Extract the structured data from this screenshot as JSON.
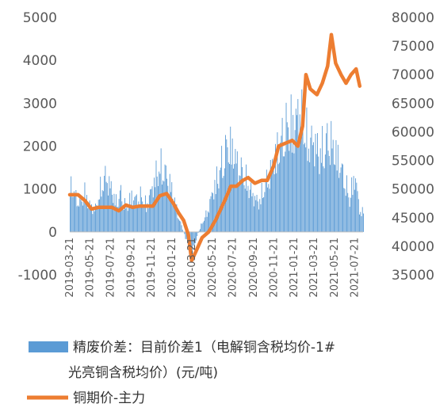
{
  "chart_data": {
    "type": "bar+line",
    "x_ticks": [
      "2019-03-21",
      "2019-05-21",
      "2019-07-21",
      "2019-09-21",
      "2019-11-21",
      "2020-01-21",
      "2020-03-21",
      "2020-05-21",
      "2020-07-21",
      "2020-09-21",
      "2020-11-21",
      "2021-01-21",
      "2021-03-21",
      "2021-05-21",
      "2021-07-21"
    ],
    "y_left": {
      "ticks": [
        "5000",
        "4000",
        "3000",
        "2000",
        "1000",
        "0",
        "-1000"
      ],
      "min": -1000,
      "max": 5000
    },
    "y_right": {
      "ticks": [
        "80000",
        "75000",
        "70000",
        "65000",
        "60000",
        "55000",
        "50000",
        "45000",
        "40000",
        "35000"
      ],
      "min": 35000,
      "max": 80000
    },
    "series": [
      {
        "name": "精废价差：目前价差1（电解铜含税均价-1#光亮铜含税均价）(元/吨)",
        "kind": "bar",
        "axis": "left",
        "color": "#5B9BD5",
        "points": [
          [
            "2019-03-21",
            1500
          ],
          [
            "2019-04-05",
            1100
          ],
          [
            "2019-04-20",
            900
          ],
          [
            "2019-05-05",
            1200
          ],
          [
            "2019-05-20",
            800
          ],
          [
            "2019-06-05",
            700
          ],
          [
            "2019-06-20",
            1300
          ],
          [
            "2019-07-05",
            1700
          ],
          [
            "2019-07-20",
            1400
          ],
          [
            "2019-08-05",
            900
          ],
          [
            "2019-08-20",
            1200
          ],
          [
            "2019-09-05",
            700
          ],
          [
            "2019-09-20",
            1100
          ],
          [
            "2019-10-05",
            1000
          ],
          [
            "2019-10-20",
            1100
          ],
          [
            "2019-11-05",
            800
          ],
          [
            "2019-11-20",
            1300
          ],
          [
            "2019-12-05",
            1800
          ],
          [
            "2019-12-20",
            2000
          ],
          [
            "2020-01-05",
            1700
          ],
          [
            "2020-01-20",
            1300
          ],
          [
            "2020-02-05",
            600
          ],
          [
            "2020-02-20",
            100
          ],
          [
            "2020-03-05",
            -300
          ],
          [
            "2020-03-20",
            -700
          ],
          [
            "2020-04-05",
            -100
          ],
          [
            "2020-04-20",
            300
          ],
          [
            "2020-05-05",
            600
          ],
          [
            "2020-05-20",
            1200
          ],
          [
            "2020-06-05",
            1700
          ],
          [
            "2020-06-20",
            2200
          ],
          [
            "2020-07-05",
            2700
          ],
          [
            "2020-07-20",
            2500
          ],
          [
            "2020-08-05",
            2000
          ],
          [
            "2020-08-20",
            1800
          ],
          [
            "2020-09-05",
            1400
          ],
          [
            "2020-09-20",
            1100
          ],
          [
            "2020-10-05",
            900
          ],
          [
            "2020-10-20",
            1300
          ],
          [
            "2020-11-05",
            1700
          ],
          [
            "2020-11-20",
            2200
          ],
          [
            "2020-12-05",
            2600
          ],
          [
            "2020-12-20",
            3000
          ],
          [
            "2021-01-05",
            3400
          ],
          [
            "2021-01-20",
            3200
          ],
          [
            "2021-02-05",
            3800
          ],
          [
            "2021-02-20",
            3100
          ],
          [
            "2021-03-05",
            2700
          ],
          [
            "2021-03-20",
            2800
          ],
          [
            "2021-04-05",
            2400
          ],
          [
            "2021-04-20",
            2600
          ],
          [
            "2021-05-05",
            2900
          ],
          [
            "2021-05-20",
            2500
          ],
          [
            "2021-06-05",
            2100
          ],
          [
            "2021-06-20",
            1600
          ],
          [
            "2021-07-05",
            1000
          ],
          [
            "2021-07-20",
            1800
          ],
          [
            "2021-08-05",
            600
          ]
        ]
      },
      {
        "name": "铜期价-主力",
        "kind": "line",
        "axis": "right",
        "color": "#ED7D31",
        "points": [
          [
            "2019-03-21",
            49000
          ],
          [
            "2019-04-15",
            49000
          ],
          [
            "2019-05-05",
            48000
          ],
          [
            "2019-05-25",
            46500
          ],
          [
            "2019-06-15",
            46800
          ],
          [
            "2019-07-05",
            46800
          ],
          [
            "2019-07-25",
            46800
          ],
          [
            "2019-08-15",
            46200
          ],
          [
            "2019-09-05",
            47200
          ],
          [
            "2019-09-25",
            46800
          ],
          [
            "2019-10-15",
            47000
          ],
          [
            "2019-11-05",
            47000
          ],
          [
            "2019-11-25",
            47000
          ],
          [
            "2019-12-15",
            48800
          ],
          [
            "2020-01-05",
            49200
          ],
          [
            "2020-01-25",
            47500
          ],
          [
            "2020-02-10",
            45800
          ],
          [
            "2020-02-25",
            44500
          ],
          [
            "2020-03-10",
            42000
          ],
          [
            "2020-03-20",
            37500
          ],
          [
            "2020-04-01",
            39000
          ],
          [
            "2020-04-20",
            41500
          ],
          [
            "2020-05-10",
            42500
          ],
          [
            "2020-05-30",
            44500
          ],
          [
            "2020-06-15",
            46500
          ],
          [
            "2020-07-01",
            48500
          ],
          [
            "2020-07-15",
            50500
          ],
          [
            "2020-08-01",
            50500
          ],
          [
            "2020-08-20",
            51500
          ],
          [
            "2020-09-05",
            52000
          ],
          [
            "2020-09-25",
            51000
          ],
          [
            "2020-10-15",
            51500
          ],
          [
            "2020-11-01",
            51500
          ],
          [
            "2020-11-20",
            54000
          ],
          [
            "2020-12-05",
            57500
          ],
          [
            "2020-12-25",
            58000
          ],
          [
            "2021-01-15",
            58500
          ],
          [
            "2021-02-01",
            57500
          ],
          [
            "2021-02-15",
            61000
          ],
          [
            "2021-02-25",
            70000
          ],
          [
            "2021-03-10",
            67500
          ],
          [
            "2021-03-30",
            66500
          ],
          [
            "2021-04-15",
            68500
          ],
          [
            "2021-05-01",
            71500
          ],
          [
            "2021-05-12",
            77000
          ],
          [
            "2021-05-25",
            72000
          ],
          [
            "2021-06-10",
            70000
          ],
          [
            "2021-06-25",
            68500
          ],
          [
            "2021-07-10",
            70000
          ],
          [
            "2021-07-25",
            71000
          ],
          [
            "2021-08-05",
            68000
          ]
        ]
      }
    ],
    "legend_position": "bottom",
    "grid": false
  }
}
